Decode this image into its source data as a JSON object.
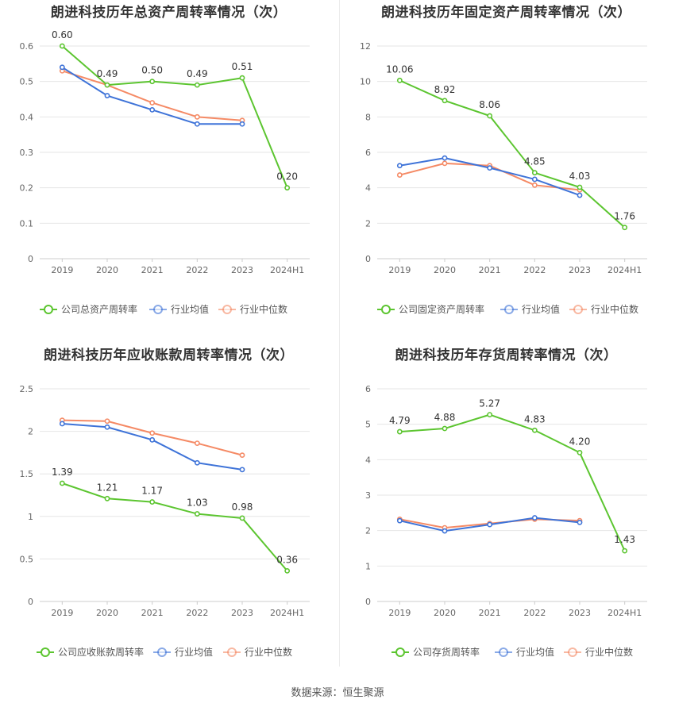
{
  "source": "数据来源：恒生聚源",
  "colors": {
    "company": "#5cc530",
    "industry_avg": "#3e73d8",
    "industry_median": "#f58a65"
  },
  "chart_data": [
    {
      "type": "line",
      "title": "朗进科技历年总资产周转率情况（次）",
      "categories": [
        "2019",
        "2020",
        "2021",
        "2022",
        "2023",
        "2024H1"
      ],
      "ylim": [
        0,
        0.6
      ],
      "yticks": [
        "0",
        "0.1",
        "0.2",
        "0.3",
        "0.4",
        "0.5",
        "0.6"
      ],
      "grid": true,
      "legend_position": "bottom",
      "series": [
        {
          "name": "公司总资产周转率",
          "key": "company",
          "values": [
            0.6,
            0.49,
            0.5,
            0.49,
            0.51,
            0.2
          ],
          "labels": [
            "0.60",
            "0.49",
            "0.50",
            "0.49",
            "0.51",
            "0.20"
          ]
        },
        {
          "name": "行业均值",
          "key": "industry_avg",
          "values": [
            0.54,
            0.46,
            0.42,
            0.38,
            0.38,
            null
          ]
        },
        {
          "name": "行业中位数",
          "key": "industry_median",
          "values": [
            0.53,
            0.49,
            0.44,
            0.4,
            0.39,
            null
          ]
        }
      ]
    },
    {
      "type": "line",
      "title": "朗进科技历年固定资产周转率情况（次）",
      "categories": [
        "2019",
        "2020",
        "2021",
        "2022",
        "2023",
        "2024H1"
      ],
      "ylim": [
        0,
        12
      ],
      "yticks": [
        "0",
        "2",
        "4",
        "6",
        "8",
        "10",
        "12"
      ],
      "grid": true,
      "legend_position": "bottom",
      "series": [
        {
          "name": "公司固定资产周转率",
          "key": "company",
          "values": [
            10.06,
            8.92,
            8.06,
            4.85,
            4.03,
            1.76
          ],
          "labels": [
            "10.06",
            "8.92",
            "8.06",
            "4.85",
            "4.03",
            "1.76"
          ]
        },
        {
          "name": "行业均值",
          "key": "industry_avg",
          "values": [
            5.25,
            5.68,
            5.12,
            4.48,
            3.58,
            null
          ]
        },
        {
          "name": "行业中位数",
          "key": "industry_median",
          "values": [
            4.72,
            5.38,
            5.25,
            4.15,
            3.88,
            null
          ]
        }
      ]
    },
    {
      "type": "line",
      "title": "朗进科技历年应收账款周转率情况（次）",
      "categories": [
        "2019",
        "2020",
        "2021",
        "2022",
        "2023",
        "2024H1"
      ],
      "ylim": [
        0,
        2.5
      ],
      "yticks": [
        "0",
        "0.5",
        "1",
        "1.5",
        "2",
        "2.5"
      ],
      "grid": true,
      "legend_position": "bottom",
      "series": [
        {
          "name": "公司应收账款周转率",
          "key": "company",
          "values": [
            1.39,
            1.21,
            1.17,
            1.03,
            0.98,
            0.36
          ],
          "labels": [
            "1.39",
            "1.21",
            "1.17",
            "1.03",
            "0.98",
            "0.36"
          ]
        },
        {
          "name": "行业均值",
          "key": "industry_avg",
          "values": [
            2.09,
            2.05,
            1.9,
            1.63,
            1.55,
            null
          ]
        },
        {
          "name": "行业中位数",
          "key": "industry_median",
          "values": [
            2.13,
            2.12,
            1.98,
            1.86,
            1.72,
            null
          ]
        }
      ]
    },
    {
      "type": "line",
      "title": "朗进科技历年存货周转率情况（次）",
      "categories": [
        "2019",
        "2020",
        "2021",
        "2022",
        "2023",
        "2024H1"
      ],
      "ylim": [
        0,
        6
      ],
      "yticks": [
        "0",
        "1",
        "2",
        "3",
        "4",
        "5",
        "6"
      ],
      "grid": true,
      "legend_position": "bottom",
      "series": [
        {
          "name": "公司存货周转率",
          "key": "company",
          "values": [
            4.79,
            4.88,
            5.27,
            4.83,
            4.2,
            1.43
          ],
          "labels": [
            "4.79",
            "4.88",
            "5.27",
            "4.83",
            "4.20",
            "1.43"
          ]
        },
        {
          "name": "行业均值",
          "key": "industry_avg",
          "values": [
            2.28,
            1.99,
            2.17,
            2.36,
            2.23,
            null
          ]
        },
        {
          "name": "行业中位数",
          "key": "industry_median",
          "values": [
            2.32,
            2.08,
            2.2,
            2.32,
            2.28,
            null
          ]
        }
      ]
    }
  ]
}
